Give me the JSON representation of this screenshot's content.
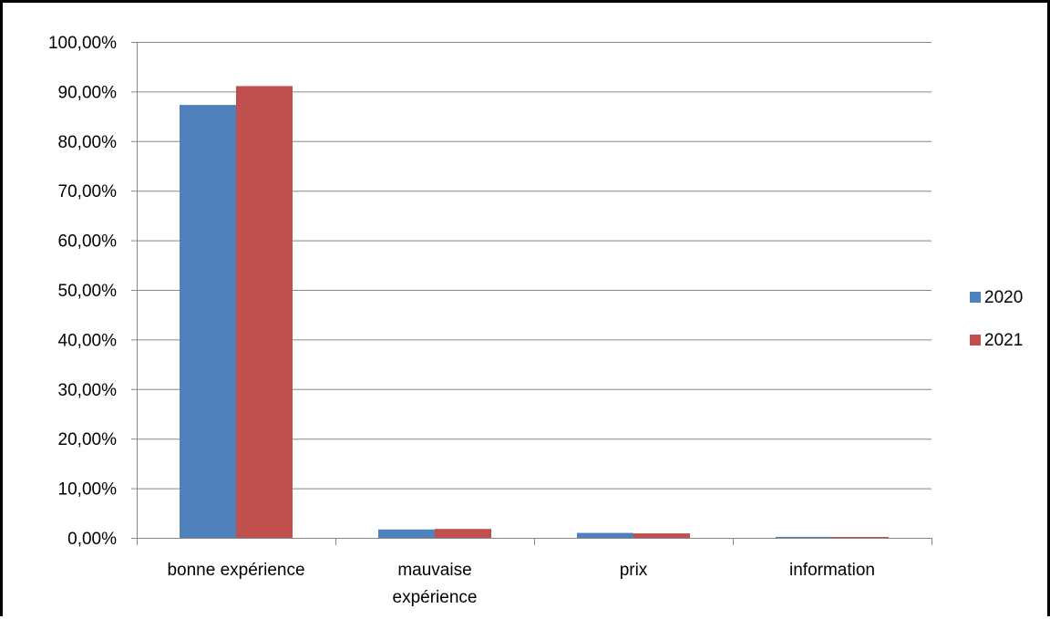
{
  "chart_data": {
    "type": "bar",
    "title": "",
    "xlabel": "",
    "ylabel": "",
    "categories": [
      [
        "bonne expérience"
      ],
      [
        "mauvaise",
        "expérience"
      ],
      [
        "prix"
      ],
      [
        "information"
      ]
    ],
    "series": [
      {
        "name": "2020",
        "color": "#4F81BD",
        "values": [
          87.3,
          1.7,
          1.0,
          0.2
        ]
      },
      {
        "name": "2021",
        "color": "#C0504D",
        "values": [
          91.1,
          1.8,
          0.9,
          0.1
        ]
      }
    ],
    "ylim": [
      0,
      100
    ],
    "yticks": [
      {
        "value": 0,
        "label": "0,00%"
      },
      {
        "value": 10,
        "label": "10,00%"
      },
      {
        "value": 20,
        "label": "20,00%"
      },
      {
        "value": 30,
        "label": "30,00%"
      },
      {
        "value": 40,
        "label": "40,00%"
      },
      {
        "value": 50,
        "label": "50,00%"
      },
      {
        "value": 60,
        "label": "60,00%"
      },
      {
        "value": 70,
        "label": "70,00%"
      },
      {
        "value": 80,
        "label": "80,00%"
      },
      {
        "value": 90,
        "label": "90,00%"
      },
      {
        "value": 100,
        "label": "100,00%"
      }
    ],
    "grid": true,
    "legend_position": "right"
  }
}
